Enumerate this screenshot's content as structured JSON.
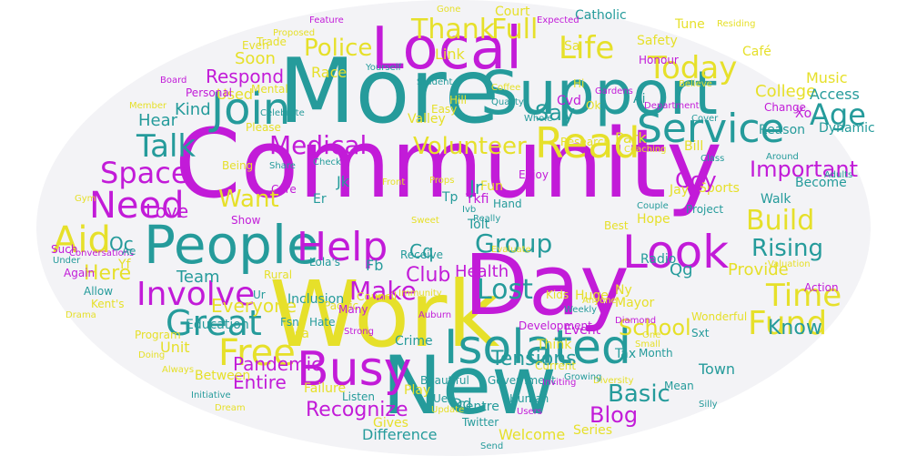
{
  "cloud": {
    "colors": {
      "magenta": "#c21bd8",
      "teal": "#259b9b",
      "yellow": "#e6e02a",
      "background": "#ffffff"
    },
    "words": {
      "community": "Community",
      "more": "More",
      "work": "Work",
      "day": "Day",
      "new": "New",
      "local": "Local",
      "support": "Support",
      "people": "People",
      "isolated": "Isolated",
      "busy": "Busy",
      "read": "Read",
      "service": "Service",
      "look": "Look",
      "join": "Join",
      "help": "Help",
      "free": "Free",
      "today": "Today",
      "need": "Need",
      "involve": "Involve",
      "space": "Space",
      "talk": "Talk",
      "aid": "Aid",
      "great": "Great",
      "life": "Life",
      "thank": "Thank",
      "full": "Full",
      "medical": "Medical",
      "volunteer": "Volunteer",
      "police": "Police",
      "group": "Group",
      "make": "Make",
      "fund": "Fund",
      "time": "Time",
      "lost": "Lost",
      "build": "Build",
      "age": "Age",
      "rising": "Rising",
      "know": "Know",
      "basic": "Basic",
      "school": "School",
      "want": "Want",
      "important": "Important",
      "love": "Love",
      "everyone": "Everyone",
      "tensions": "Tensions",
      "blog": "Blog",
      "entire": "Entire",
      "recognize": "Recognize",
      "pandemic": "Pandemic",
      "team": "Team",
      "here": "Here",
      "hear": "Hear",
      "kind": "Kind",
      "respond": "Respond",
      "soon": "Soon",
      "used": "Used",
      "race": "Race",
      "club": "Club",
      "health": "Health",
      "provide": "Provide",
      "college": "College",
      "access": "Access",
      "music": "Music",
      "dynamic": "Dynamic",
      "become": "Become",
      "action": "Action",
      "centre": "Centre",
      "difference": "Difference",
      "welcome": "Welcome",
      "crime": "Crime",
      "town": "Town",
      "mayor": "Mayor",
      "radio": "Radio",
      "sports": "Sports",
      "safety": "Safety",
      "court": "Court",
      "tune": "Tune",
      "catholic": "Catholic",
      "honour": "Honour",
      "cafe": "Café",
      "valley": "Valley",
      "unit": "Unit",
      "education": "Education",
      "program": "Program",
      "between": "Between",
      "series": "Series",
      "gives": "Gives",
      "twitter": "Twitter",
      "government": "Government",
      "beautiful": "Beautiful",
      "inclusion": "Inclusion",
      "council": "Council",
      "receive": "Receive",
      "development": "Development",
      "event": "Event",
      "walk": "Walk",
      "project": "Project",
      "research": "Research",
      "hope": "Hope",
      "fun": "Fun",
      "park": "Park",
      "say": "Say",
      "reason": "Reason",
      "change": "Change",
      "dd": "Dd",
      "fb": "Fb",
      "cq": "Cq",
      "qg": "Qg",
      "oc": "Oc",
      "fsn": "Fsn",
      "tax": "Tax",
      "month": "Month",
      "think": "Think",
      "play": "Play",
      "huge": "Huge",
      "kids": "Kids",
      "failure": "Failure",
      "listen": "Listen",
      "current": "Current",
      "rural": "Rural",
      "lola": "Lola's",
      "kents": "Kent's",
      "pacific": "Pacific",
      "jr": "Jr",
      "tkfi": "Tkfi",
      "coy": "Coy",
      "bill": "Bill",
      "jay": "Jay",
      "wonderful": "Wonderful",
      "diversity": "Diversity",
      "valuation": "Valuation",
      "adults": "Adults",
      "around": "Around",
      "personal": "Personal",
      "mental": "Mental",
      "please": "Please",
      "care": "Care",
      "show": "Show",
      "being": "Being",
      "again": "Again",
      "allow": "Allow",
      "doing": "Doing",
      "always": "Always",
      "initiative": "Initiative",
      "strong": "Strong",
      "auburn": "Auburn",
      "hate": "Hate",
      "many": "Many",
      "yourself": "Yourself",
      "proposed": "Proposed",
      "link": "Link",
      "student": "Student",
      "coffee": "Coffee",
      "whole": "Whole",
      "couple": "Couple",
      "class": "Class",
      "residing": "Residing",
      "department": "Department",
      "quality": "Quality",
      "believe": "Believe",
      "hill": "Hill",
      "easy": "Easy",
      "enjoy": "Enjoy",
      "gardens": "Gardens",
      "expected": "Expected",
      "trade": "Trade",
      "even": "Even",
      "such": "Such",
      "under": "Under",
      "conversations": "Conversations",
      "growing": "Growing",
      "human": "Human",
      "mean": "Mean",
      "anyone": "Anyone",
      "weekly": "Weekly",
      "diamond": "Diamond",
      "immunity": "Immunity",
      "check": "Check",
      "share": "Share",
      "silly": "Silly",
      "tolt": "Tolt",
      "props": "Props",
      "hand": "Hand",
      "front": "Front",
      "cover": "Cover",
      "coaching": "Coaching",
      "celebrate": "Celebrate",
      "evaluate": "Evaluate",
      "really": "Really",
      "inviting": "Inviting",
      "users": "Users",
      "update": "Update",
      "dream": "Dream",
      "send": "Send",
      "best": "Best",
      "small": "Small",
      "one": "One",
      "sxt": "Sxt",
      "cvd": "Cvd",
      "yf": "Yf",
      "ae": "Ae",
      "er": "Er",
      "jk": "Jk",
      "tp": "Tp",
      "uex": "Uex",
      "ny": "Ny",
      "isa": "Isa",
      "xo": "Xo",
      "ivb": "Ivb",
      "ur": "Ur",
      "ok": "Ok",
      "hi": "Hi",
      "sa": "Sa",
      "ai": "Ai",
      "gym": "Gym",
      "drama": "Drama",
      "member": "Member",
      "board": "Board",
      "feature": "Feature",
      "gone": "Gone",
      "sweet": "Sweet"
    }
  }
}
